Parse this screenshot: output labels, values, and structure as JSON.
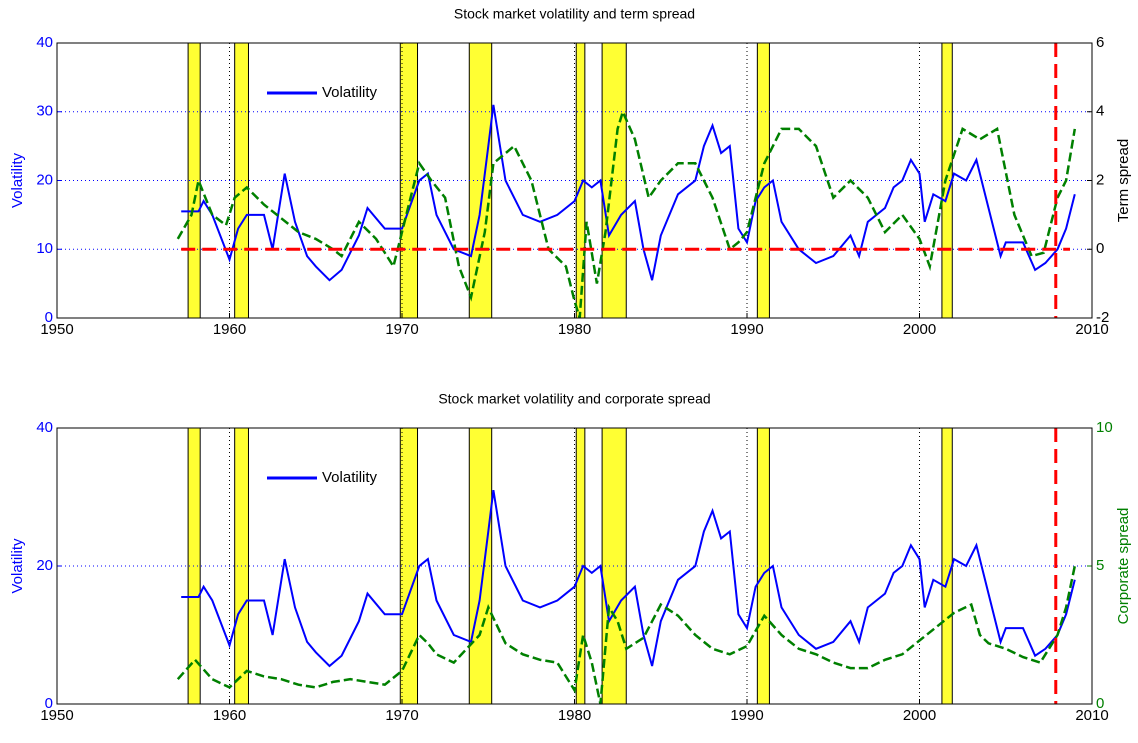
{
  "chart_data": [
    {
      "type": "line",
      "title": "Stock market volatility and term spread",
      "ylabel": "Volatility",
      "y2label": "Term spread",
      "xlim": [
        1950,
        2010
      ],
      "xticks": [
        1950,
        1960,
        1970,
        1980,
        1990,
        2000,
        2010
      ],
      "ylim": [
        0,
        40
      ],
      "yticks": [
        0,
        10,
        20,
        30,
        40
      ],
      "y2lim": [
        -2,
        6
      ],
      "y2ticks": [
        -2,
        0,
        2,
        4,
        6
      ],
      "grid": true,
      "legend": "upper left",
      "recessions": [
        [
          1957.6,
          1958.3
        ],
        [
          1960.3,
          1961.1
        ],
        [
          1969.9,
          1970.9
        ],
        [
          1973.9,
          1975.2
        ],
        [
          1980.1,
          1980.6
        ],
        [
          1981.6,
          1983.0
        ],
        [
          1990.6,
          1991.3
        ],
        [
          2001.3,
          2001.9
        ]
      ],
      "y2_reference": 0,
      "x_reference": 2007.9,
      "series": [
        {
          "name": "Volatility",
          "color": "#0000ff",
          "x": [
            1957.2,
            1958.2,
            1958.5,
            1959,
            1960,
            1960.5,
            1961,
            1962,
            1962.5,
            1963.2,
            1963.8,
            1964.5,
            1965,
            1965.8,
            1966.5,
            1967.5,
            1968,
            1969,
            1970,
            1971,
            1971.5,
            1972,
            1973,
            1974,
            1974.5,
            1975,
            1975.3,
            1976,
            1977,
            1978,
            1979,
            1980,
            1980.5,
            1981,
            1981.5,
            1982,
            1982.7,
            1983.5,
            1984,
            1984.5,
            1985,
            1986,
            1987,
            1987.5,
            1988,
            1988.5,
            1989,
            1989.5,
            1990,
            1990.5,
            1991,
            1991.5,
            1992,
            1993,
            1994,
            1995,
            1996,
            1996.5,
            1997,
            1998,
            1998.5,
            1999,
            1999.5,
            2000,
            2000.3,
            2000.8,
            2001.5,
            2002,
            2002.7,
            2003.3,
            2004,
            2004.7,
            2005,
            2006,
            2006.7,
            2007.3,
            2008,
            2008.5,
            2009
          ],
          "values": [
            15.5,
            15.5,
            17,
            15,
            8.5,
            13,
            15,
            15,
            10,
            21,
            14,
            9,
            7.5,
            5.5,
            7,
            12,
            16,
            13,
            13,
            20,
            21,
            15,
            10,
            9,
            15,
            25,
            31,
            20,
            15,
            14,
            15,
            17,
            20,
            19,
            20,
            12,
            15,
            17,
            10,
            5.5,
            12,
            18,
            20,
            25,
            28,
            24,
            25,
            13,
            11,
            17,
            19,
            20,
            14,
            10,
            8,
            9,
            12,
            9,
            14,
            16,
            19,
            20,
            23,
            21,
            14,
            18,
            17,
            21,
            20,
            23,
            16,
            9,
            11,
            11,
            7,
            8,
            10,
            13,
            18
          ]
        },
        {
          "color": "#008000",
          "axis": "y2",
          "x": [
            1957,
            1957.8,
            1958.2,
            1959,
            1959.8,
            1960.3,
            1961,
            1962,
            1963,
            1964,
            1965,
            1966,
            1966.5,
            1967.5,
            1968.5,
            1969.5,
            1970.5,
            1971,
            1971.7,
            1972.5,
            1973.3,
            1974,
            1974.8,
            1975.3,
            1976.5,
            1977.5,
            1978.5,
            1979.5,
            1980,
            1980.3,
            1980.7,
            1981.3,
            1981.8,
            1982.5,
            1982.8,
            1983.5,
            1984.3,
            1985,
            1986,
            1987,
            1988,
            1989,
            1989.5,
            1990,
            1991,
            1992,
            1993,
            1994,
            1995,
            1996,
            1997,
            1998,
            1999,
            2000,
            2000.6,
            2001.5,
            2002.5,
            2003.5,
            2004.5,
            2005.5,
            2006.5,
            2007.2,
            2008,
            2008.5,
            2009
          ],
          "values": [
            0.3,
            1,
            2,
            1,
            0.7,
            1.5,
            1.8,
            1.3,
            0.9,
            0.5,
            0.3,
            0,
            -0.2,
            0.8,
            0.3,
            -0.5,
            1.5,
            2.5,
            2,
            1.5,
            -0.5,
            -1.4,
            0.5,
            2.5,
            3,
            2,
            0,
            -0.5,
            -1.5,
            -2,
            0.8,
            -1,
            0.5,
            3.5,
            4,
            3.2,
            1.5,
            2,
            2.5,
            2.5,
            1.5,
            0,
            0.2,
            0.5,
            2.5,
            3.5,
            3.5,
            3,
            1.5,
            2,
            1.5,
            0.5,
            1,
            0.3,
            -0.5,
            2,
            3.5,
            3.2,
            3.5,
            1,
            -0.2,
            -0.1,
            1.5,
            2,
            3.5
          ]
        }
      ]
    },
    {
      "type": "line",
      "title": "Stock market volatility and corporate spread",
      "ylabel": "Volatility",
      "y2label": "Corporate spread",
      "xlim": [
        1950,
        2010
      ],
      "xticks": [
        1950,
        1960,
        1970,
        1980,
        1990,
        2000,
        2010
      ],
      "ylim": [
        0,
        40
      ],
      "yticks": [
        0,
        20,
        40
      ],
      "y2lim": [
        0,
        10
      ],
      "y2ticks": [
        0,
        5,
        10
      ],
      "grid": true,
      "legend": "upper left",
      "recessions": [
        [
          1957.6,
          1958.3
        ],
        [
          1960.3,
          1961.1
        ],
        [
          1969.9,
          1970.9
        ],
        [
          1973.9,
          1975.2
        ],
        [
          1980.1,
          1980.6
        ],
        [
          1981.6,
          1983.0
        ],
        [
          1990.6,
          1991.3
        ],
        [
          2001.3,
          2001.9
        ]
      ],
      "x_reference": 2007.9,
      "series": [
        {
          "name": "Volatility",
          "color": "#0000ff",
          "x": [
            1957.2,
            1958.2,
            1958.5,
            1959,
            1960,
            1960.5,
            1961,
            1962,
            1962.5,
            1963.2,
            1963.8,
            1964.5,
            1965,
            1965.8,
            1966.5,
            1967.5,
            1968,
            1969,
            1970,
            1971,
            1971.5,
            1972,
            1973,
            1974,
            1974.5,
            1975,
            1975.3,
            1976,
            1977,
            1978,
            1979,
            1980,
            1980.5,
            1981,
            1981.5,
            1982,
            1982.7,
            1983.5,
            1984,
            1984.5,
            1985,
            1986,
            1987,
            1987.5,
            1988,
            1988.5,
            1989,
            1989.5,
            1990,
            1990.5,
            1991,
            1991.5,
            1992,
            1993,
            1994,
            1995,
            1996,
            1996.5,
            1997,
            1998,
            1998.5,
            1999,
            1999.5,
            2000,
            2000.3,
            2000.8,
            2001.5,
            2002,
            2002.7,
            2003.3,
            2004,
            2004.7,
            2005,
            2006,
            2006.7,
            2007.3,
            2008,
            2008.5,
            2009
          ],
          "values": [
            15.5,
            15.5,
            17,
            15,
            8.5,
            13,
            15,
            15,
            10,
            21,
            14,
            9,
            7.5,
            5.5,
            7,
            12,
            16,
            13,
            13,
            20,
            21,
            15,
            10,
            9,
            15,
            25,
            31,
            20,
            15,
            14,
            15,
            17,
            20,
            19,
            20,
            12,
            15,
            17,
            10,
            5.5,
            12,
            18,
            20,
            25,
            28,
            24,
            25,
            13,
            11,
            17,
            19,
            20,
            14,
            10,
            8,
            9,
            12,
            9,
            14,
            16,
            19,
            20,
            23,
            21,
            14,
            18,
            17,
            21,
            20,
            23,
            16,
            9,
            11,
            11,
            7,
            8,
            10,
            13,
            18
          ]
        },
        {
          "color": "#008000",
          "axis": "y2",
          "x": [
            1957,
            1958,
            1959,
            1960,
            1961,
            1962,
            1963,
            1964,
            1965,
            1966,
            1967,
            1968,
            1969,
            1970,
            1971,
            1971.5,
            1972,
            1973,
            1974.5,
            1975,
            1976,
            1977,
            1978,
            1979,
            1980,
            1980.5,
            1981,
            1981.5,
            1982,
            1982.5,
            1983,
            1984,
            1985,
            1986,
            1987,
            1988,
            1989,
            1990,
            1991,
            1992,
            1993,
            1994,
            1995,
            1996,
            1997,
            1998,
            1999,
            2000,
            2001,
            2002,
            2003,
            2003.5,
            2004,
            2005,
            2006,
            2007,
            2008,
            2008.5,
            2009
          ],
          "values": [
            0.9,
            1.6,
            0.9,
            0.6,
            1.2,
            1,
            0.9,
            0.7,
            0.6,
            0.8,
            0.9,
            0.8,
            0.7,
            1.2,
            2.5,
            2.2,
            1.8,
            1.5,
            2.5,
            3.5,
            2.2,
            1.8,
            1.6,
            1.5,
            0.5,
            2.5,
            1.5,
            0,
            3.5,
            3,
            2,
            2.4,
            3.6,
            3.2,
            2.5,
            2,
            1.8,
            2.1,
            3.2,
            2.5,
            2,
            1.8,
            1.5,
            1.3,
            1.3,
            1.6,
            1.8,
            2.3,
            2.8,
            3.3,
            3.6,
            2.5,
            2.2,
            2,
            1.7,
            1.5,
            2.5,
            3.5,
            5
          ]
        }
      ]
    }
  ]
}
